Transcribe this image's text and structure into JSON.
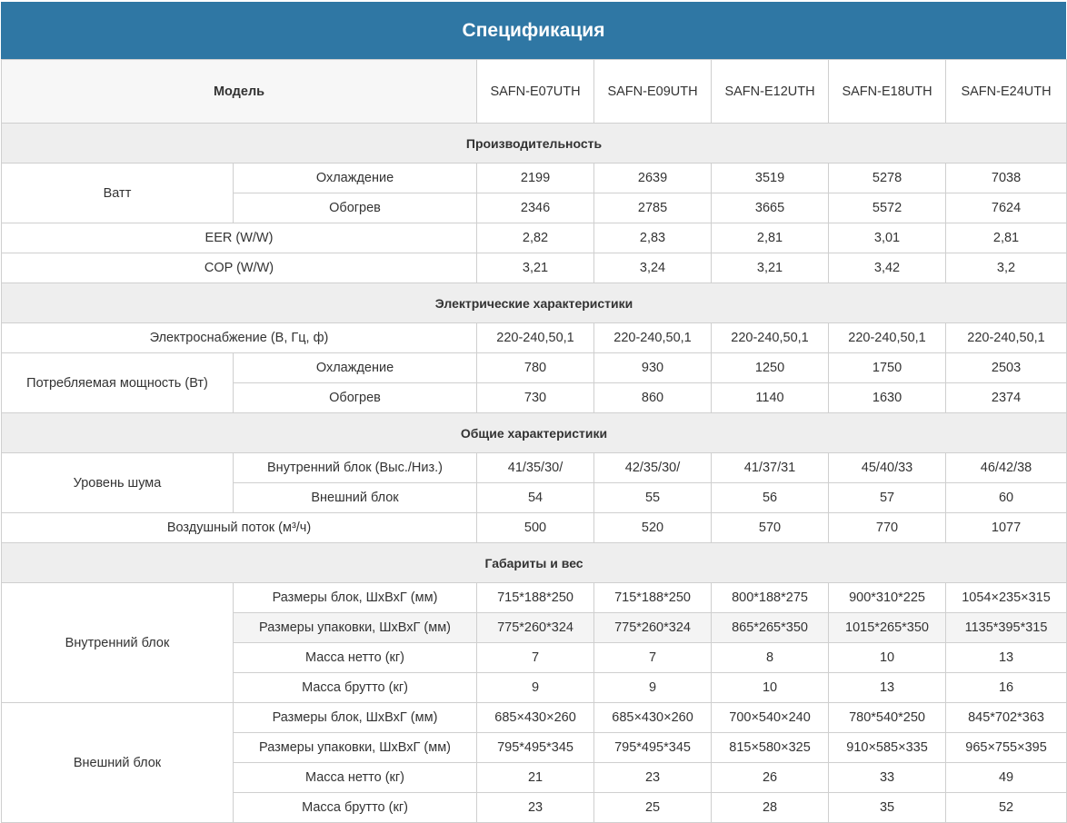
{
  "title": "Спецификация",
  "model_label": "Модель",
  "models": [
    "SAFN-E07UTH",
    "SAFN-E09UTH",
    "SAFN-E12UTH",
    "SAFN-E18UTH",
    "SAFN-E24UTH"
  ],
  "sections": {
    "performance": {
      "title": "Производительность",
      "watt": {
        "label": "Ватт",
        "cooling": {
          "label": "Охлаждение",
          "values": [
            "2199",
            "2639",
            "3519",
            "5278",
            "7038"
          ]
        },
        "heating": {
          "label": "Обогрев",
          "values": [
            "2346",
            "2785",
            "3665",
            "5572",
            "7624"
          ]
        }
      },
      "eer": {
        "label": "EER (W/W)",
        "values": [
          "2,82",
          "2,83",
          "2,81",
          "3,01",
          "2,81"
        ]
      },
      "cop": {
        "label": "COP (W/W)",
        "values": [
          "3,21",
          "3,24",
          "3,21",
          "3,42",
          "3,2"
        ]
      }
    },
    "electrical": {
      "title": "Электрические характеристики",
      "supply": {
        "label": "Электроснабжение (В, Гц, ф)",
        "values": [
          "220-240,50,1",
          "220-240,50,1",
          "220-240,50,1",
          "220-240,50,1",
          "220-240,50,1"
        ]
      },
      "power": {
        "label": "Потребляемая мощность (Вт)",
        "cooling": {
          "label": "Охлаждение",
          "values": [
            "780",
            "930",
            "1250",
            "1750",
            "2503"
          ]
        },
        "heating": {
          "label": "Обогрев",
          "values": [
            "730",
            "860",
            "1140",
            "1630",
            "2374"
          ]
        }
      }
    },
    "general": {
      "title": "Общие характеристики",
      "noise": {
        "label": "Уровень шума",
        "indoor": {
          "label": "Внутренний блок (Выс./Низ.)",
          "values": [
            "41/35/30/",
            "42/35/30/",
            "41/37/31",
            "45/40/33",
            "46/42/38"
          ]
        },
        "outdoor": {
          "label": "Внешний блок",
          "values": [
            "54",
            "55",
            "56",
            "57",
            "60"
          ]
        }
      },
      "airflow": {
        "label": "Воздушный поток (м³/ч)",
        "values": [
          "500",
          "520",
          "570",
          "770",
          "1077"
        ]
      }
    },
    "dimensions": {
      "title": "Габариты и вес",
      "indoor": {
        "label": "Внутренний блок",
        "size": {
          "label": "Размеры блок, ШхВхГ (мм)",
          "values": [
            "715*188*250",
            "715*188*250",
            "800*188*275",
            "900*310*225",
            "1054×235×315"
          ]
        },
        "pack": {
          "label": "Размеры упаковки, ШхВхГ (мм)",
          "values": [
            "775*260*324",
            "775*260*324",
            "865*265*350",
            "1015*265*350",
            "1135*395*315"
          ]
        },
        "net": {
          "label": "Масса нетто (кг)",
          "values": [
            "7",
            "7",
            "8",
            "10",
            "13"
          ]
        },
        "gross": {
          "label": "Масса брутто (кг)",
          "values": [
            "9",
            "9",
            "10",
            "13",
            "16"
          ]
        }
      },
      "outdoor": {
        "label": "Внешний блок",
        "size": {
          "label": "Размеры блок, ШхВхГ (мм)",
          "values": [
            "685×430×260",
            "685×430×260",
            "700×540×240",
            "780*540*250",
            "845*702*363"
          ]
        },
        "pack": {
          "label": "Размеры упаковки, ШхВхГ (мм)",
          "values": [
            "795*495*345",
            "795*495*345",
            "815×580×325",
            "910×585×335",
            "965×755×395"
          ]
        },
        "net": {
          "label": "Масса нетто (кг)",
          "values": [
            "21",
            "23",
            "26",
            "33",
            "49"
          ]
        },
        "gross": {
          "label": "Масса брутто (кг)",
          "values": [
            "23",
            "25",
            "28",
            "35",
            "52"
          ]
        }
      }
    }
  }
}
